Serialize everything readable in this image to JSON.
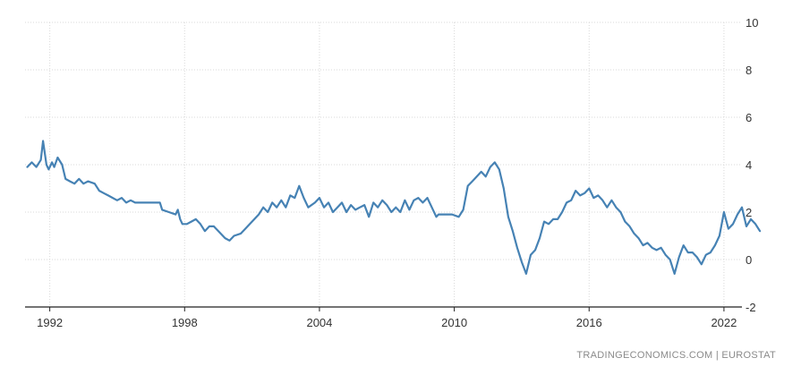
{
  "source_note": "TRADINGECONOMICS.COM  |  EUROSTAT",
  "colors": {
    "line": "#4682b4",
    "grid": "#d9d9d9",
    "axis": "#222222",
    "text": "#333333"
  },
  "chart_data": {
    "type": "line",
    "title": "",
    "xlabel": "",
    "ylabel": "",
    "xlim": [
      1990.9,
      2022.8
    ],
    "ylim": [
      -2,
      10
    ],
    "x_ticks": [
      1992,
      1998,
      2004,
      2010,
      2016,
      2022
    ],
    "y_ticks": [
      -2,
      0,
      2,
      4,
      6,
      8,
      10
    ],
    "grid": true,
    "y_axis_side": "right",
    "series": [
      {
        "name": "",
        "points": [
          [
            1991.0,
            3.9
          ],
          [
            1991.2,
            4.1
          ],
          [
            1991.4,
            3.9
          ],
          [
            1991.6,
            4.2
          ],
          [
            1991.7,
            5.0
          ],
          [
            1991.85,
            4.0
          ],
          [
            1991.95,
            3.8
          ],
          [
            1992.1,
            4.1
          ],
          [
            1992.2,
            3.9
          ],
          [
            1992.35,
            4.3
          ],
          [
            1992.55,
            4.0
          ],
          [
            1992.7,
            3.4
          ],
          [
            1992.9,
            3.3
          ],
          [
            1993.1,
            3.2
          ],
          [
            1993.3,
            3.4
          ],
          [
            1993.5,
            3.2
          ],
          [
            1993.7,
            3.3
          ],
          [
            1994.0,
            3.2
          ],
          [
            1994.2,
            2.9
          ],
          [
            1994.4,
            2.8
          ],
          [
            1994.6,
            2.7
          ],
          [
            1994.8,
            2.6
          ],
          [
            1995.0,
            2.5
          ],
          [
            1995.2,
            2.6
          ],
          [
            1995.4,
            2.4
          ],
          [
            1995.6,
            2.5
          ],
          [
            1995.8,
            2.4
          ],
          [
            1996.2,
            2.4
          ],
          [
            1996.6,
            2.4
          ],
          [
            1996.9,
            2.4
          ],
          [
            1997.0,
            2.1
          ],
          [
            1997.3,
            2.0
          ],
          [
            1997.6,
            1.9
          ],
          [
            1997.7,
            2.1
          ],
          [
            1997.8,
            1.7
          ],
          [
            1997.9,
            1.5
          ],
          [
            1998.1,
            1.5
          ],
          [
            1998.3,
            1.6
          ],
          [
            1998.5,
            1.7
          ],
          [
            1998.7,
            1.5
          ],
          [
            1998.9,
            1.2
          ],
          [
            1999.1,
            1.4
          ],
          [
            1999.3,
            1.4
          ],
          [
            1999.6,
            1.1
          ],
          [
            1999.8,
            0.9
          ],
          [
            2000.0,
            0.8
          ],
          [
            2000.2,
            1.0
          ],
          [
            2000.5,
            1.1
          ],
          [
            2000.7,
            1.3
          ],
          [
            2001.0,
            1.6
          ],
          [
            2001.3,
            1.9
          ],
          [
            2001.5,
            2.2
          ],
          [
            2001.7,
            2.0
          ],
          [
            2001.9,
            2.4
          ],
          [
            2002.1,
            2.2
          ],
          [
            2002.3,
            2.5
          ],
          [
            2002.5,
            2.2
          ],
          [
            2002.7,
            2.7
          ],
          [
            2002.9,
            2.6
          ],
          [
            2003.1,
            3.1
          ],
          [
            2003.3,
            2.6
          ],
          [
            2003.5,
            2.2
          ],
          [
            2003.8,
            2.4
          ],
          [
            2004.0,
            2.6
          ],
          [
            2004.2,
            2.2
          ],
          [
            2004.4,
            2.4
          ],
          [
            2004.6,
            2.0
          ],
          [
            2004.8,
            2.2
          ],
          [
            2005.0,
            2.4
          ],
          [
            2005.2,
            2.0
          ],
          [
            2005.4,
            2.3
          ],
          [
            2005.6,
            2.1
          ],
          [
            2005.8,
            2.2
          ],
          [
            2006.0,
            2.3
          ],
          [
            2006.2,
            1.8
          ],
          [
            2006.4,
            2.4
          ],
          [
            2006.6,
            2.2
          ],
          [
            2006.8,
            2.5
          ],
          [
            2007.0,
            2.3
          ],
          [
            2007.2,
            2.0
          ],
          [
            2007.4,
            2.2
          ],
          [
            2007.6,
            2.0
          ],
          [
            2007.8,
            2.5
          ],
          [
            2008.0,
            2.1
          ],
          [
            2008.2,
            2.5
          ],
          [
            2008.4,
            2.6
          ],
          [
            2008.6,
            2.4
          ],
          [
            2008.8,
            2.6
          ],
          [
            2009.0,
            2.2
          ],
          [
            2009.2,
            1.8
          ],
          [
            2009.3,
            1.9
          ],
          [
            2009.6,
            1.9
          ],
          [
            2009.9,
            1.9
          ],
          [
            2010.2,
            1.8
          ],
          [
            2010.4,
            2.1
          ],
          [
            2010.6,
            3.1
          ],
          [
            2010.8,
            3.3
          ],
          [
            2011.0,
            3.5
          ],
          [
            2011.2,
            3.7
          ],
          [
            2011.4,
            3.5
          ],
          [
            2011.6,
            3.9
          ],
          [
            2011.8,
            4.1
          ],
          [
            2012.0,
            3.8
          ],
          [
            2012.2,
            3.0
          ],
          [
            2012.4,
            1.8
          ],
          [
            2012.6,
            1.2
          ],
          [
            2012.8,
            0.5
          ],
          [
            2013.0,
            -0.1
          ],
          [
            2013.2,
            -0.6
          ],
          [
            2013.4,
            0.2
          ],
          [
            2013.6,
            0.4
          ],
          [
            2013.8,
            0.9
          ],
          [
            2014.0,
            1.6
          ],
          [
            2014.2,
            1.5
          ],
          [
            2014.4,
            1.7
          ],
          [
            2014.6,
            1.7
          ],
          [
            2014.8,
            2.0
          ],
          [
            2015.0,
            2.4
          ],
          [
            2015.2,
            2.5
          ],
          [
            2015.4,
            2.9
          ],
          [
            2015.6,
            2.7
          ],
          [
            2015.8,
            2.8
          ],
          [
            2016.0,
            3.0
          ],
          [
            2016.2,
            2.6
          ],
          [
            2016.4,
            2.7
          ],
          [
            2016.6,
            2.5
          ],
          [
            2016.8,
            2.2
          ],
          [
            2017.0,
            2.5
          ],
          [
            2017.2,
            2.2
          ],
          [
            2017.4,
            2.0
          ],
          [
            2017.6,
            1.6
          ],
          [
            2017.8,
            1.4
          ],
          [
            2018.0,
            1.1
          ],
          [
            2018.2,
            0.9
          ],
          [
            2018.4,
            0.6
          ],
          [
            2018.6,
            0.7
          ],
          [
            2018.8,
            0.5
          ],
          [
            2019.0,
            0.4
          ],
          [
            2019.2,
            0.5
          ],
          [
            2019.4,
            0.2
          ],
          [
            2019.6,
            0.0
          ],
          [
            2019.8,
            -0.6
          ],
          [
            2020.0,
            0.1
          ],
          [
            2020.2,
            0.6
          ],
          [
            2020.4,
            0.3
          ],
          [
            2020.6,
            0.3
          ],
          [
            2020.8,
            0.1
          ],
          [
            2021.0,
            -0.2
          ],
          [
            2021.2,
            0.2
          ],
          [
            2021.4,
            0.3
          ],
          [
            2021.6,
            0.6
          ],
          [
            2021.8,
            1.0
          ],
          [
            2022.0,
            2.0
          ],
          [
            2022.2,
            1.3
          ],
          [
            2022.4,
            1.5
          ],
          [
            2022.6,
            1.9
          ],
          [
            2022.8,
            2.2
          ],
          [
            2023.0,
            1.4
          ],
          [
            2023.2,
            1.7
          ],
          [
            2023.4,
            1.5
          ],
          [
            2023.6,
            1.2
          ]
        ]
      }
    ]
  }
}
